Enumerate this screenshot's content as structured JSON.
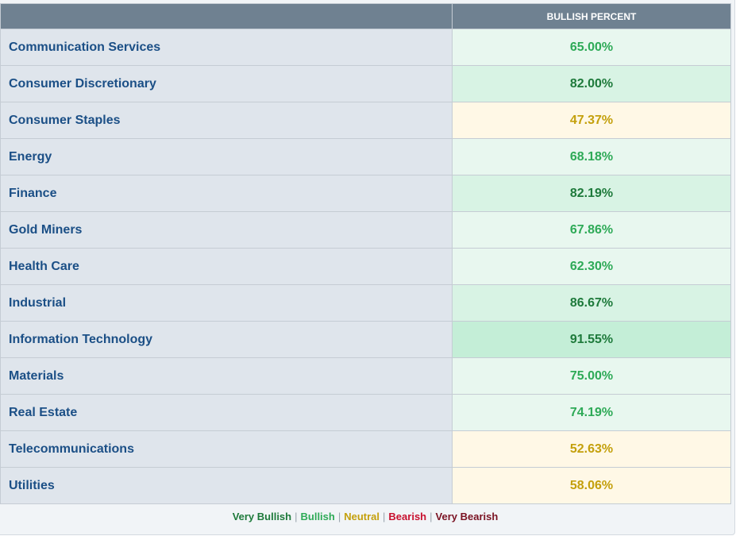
{
  "table": {
    "header_blank": "",
    "header_value": "BULLISH PERCENT",
    "rows": [
      {
        "sector": "Communication Services",
        "value": "65.00%",
        "color": "#2eaa57",
        "bg": "#e8f7ef"
      },
      {
        "sector": "Consumer Discretionary",
        "value": "82.00%",
        "color": "#1e7a3b",
        "bg": "#d8f3e4"
      },
      {
        "sector": "Consumer Staples",
        "value": "47.37%",
        "color": "#c4a00c",
        "bg": "#fff8e6"
      },
      {
        "sector": "Energy",
        "value": "68.18%",
        "color": "#2eaa57",
        "bg": "#e8f7ef"
      },
      {
        "sector": "Finance",
        "value": "82.19%",
        "color": "#1e7a3b",
        "bg": "#d8f3e4"
      },
      {
        "sector": "Gold Miners",
        "value": "67.86%",
        "color": "#2eaa57",
        "bg": "#e8f7ef"
      },
      {
        "sector": "Health Care",
        "value": "62.30%",
        "color": "#2eaa57",
        "bg": "#e8f7ef"
      },
      {
        "sector": "Industrial",
        "value": "86.67%",
        "color": "#1e7a3b",
        "bg": "#d8f3e4"
      },
      {
        "sector": "Information Technology",
        "value": "91.55%",
        "color": "#1e7a3b",
        "bg": "#c4eed7"
      },
      {
        "sector": "Materials",
        "value": "75.00%",
        "color": "#2eaa57",
        "bg": "#e8f7ef"
      },
      {
        "sector": "Real Estate",
        "value": "74.19%",
        "color": "#2eaa57",
        "bg": "#e8f7ef"
      },
      {
        "sector": "Telecommunications",
        "value": "52.63%",
        "color": "#c4a00c",
        "bg": "#fff8e6"
      },
      {
        "sector": "Utilities",
        "value": "58.06%",
        "color": "#c4a00c",
        "bg": "#fff8e6"
      }
    ]
  },
  "legend": {
    "items": [
      {
        "label": "Very Bullish",
        "color": "#1e7a3b"
      },
      {
        "label": "Bullish",
        "color": "#2eaa57"
      },
      {
        "label": "Neutral",
        "color": "#c4a00c"
      },
      {
        "label": "Bearish",
        "color": "#c8102e"
      },
      {
        "label": "Very Bearish",
        "color": "#7a1222"
      }
    ],
    "separator": "|"
  }
}
